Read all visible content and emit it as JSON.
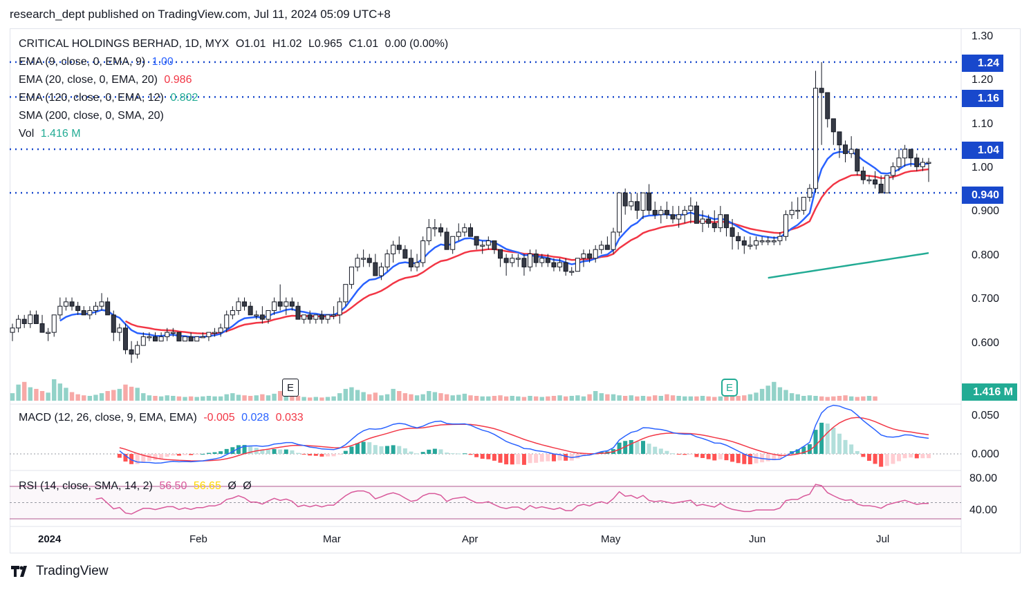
{
  "header": {
    "publisher": "research_dept published on TradingView.com, Jul 11, 2024 05:09 UTC+8"
  },
  "footer": {
    "brand": "TradingView"
  },
  "legend": {
    "symbol_line": "CRITICAL HOLDINGS BERHAD, 1D, MYX",
    "ohlc": {
      "o": "O1.01",
      "h": "H1.02",
      "l": "L0.965",
      "c": "C1.01",
      "chg": "0.00 (0.00%)"
    },
    "ema9": {
      "label": "EMA (9, close, 0, EMA, 9)",
      "value": "1.00"
    },
    "ema20": {
      "label": "EMA (20, close, 0, EMA, 20)",
      "value": "0.986"
    },
    "ema120": {
      "label": "EMA (120, close, 0, EMA, 12)",
      "value": "0.802"
    },
    "sma200": {
      "label": "SMA (200, close, 0, SMA, 20)"
    },
    "vol": {
      "label": "Vol",
      "value": "1.416 M"
    },
    "macd": {
      "label": "MACD (12, 26, close, 9, EMA, EMA)",
      "hist": "-0.005",
      "macd": "0.028",
      "signal": "0.033"
    },
    "rsi": {
      "label": "RSI (14, close, SMA, 14, 2)",
      "rsi": "56.50",
      "ma": "56.65",
      "d1": "Ø",
      "d2": "Ø"
    }
  },
  "price_axis": [
    "1.30",
    "1.20",
    "1.10",
    "1.00",
    "0.900",
    "0.800",
    "0.700",
    "0.600"
  ],
  "macd_axis": [
    "0.050",
    "0.000"
  ],
  "rsi_axis": [
    "80.00",
    "40.00"
  ],
  "levels": [
    {
      "value": 1.24,
      "label": "1.24"
    },
    {
      "value": 1.16,
      "label": "1.16"
    },
    {
      "value": 1.04,
      "label": "1.04"
    },
    {
      "value": 0.94,
      "label": "0.940"
    }
  ],
  "vol_badge": "1.416 M",
  "earnings_markers": [
    "E",
    "E"
  ],
  "months": [
    "2024",
    "Feb",
    "Mar",
    "Apr",
    "May",
    "Jun",
    "Jul"
  ],
  "colors": {
    "up": "#ffffff",
    "down": "#363a45",
    "ema9": "#2962ff",
    "ema20": "#f23645",
    "ema120": "#22ab94",
    "level": "#1848cc",
    "macd": "#2962ff",
    "signal": "#f23645",
    "rsi": "#d8589a",
    "rsi_ma": "#ffd600",
    "vol_up": "#92d2c8",
    "vol_down": "#f7a9a7"
  },
  "chart_data": {
    "type": "candlestick",
    "ohlc": [
      [
        0.62,
        0.64,
        0.6,
        0.63
      ],
      [
        0.63,
        0.66,
        0.62,
        0.65
      ],
      [
        0.65,
        0.66,
        0.63,
        0.64
      ],
      [
        0.64,
        0.67,
        0.63,
        0.66
      ],
      [
        0.66,
        0.67,
        0.64,
        0.64
      ],
      [
        0.64,
        0.66,
        0.62,
        0.62
      ],
      [
        0.62,
        0.63,
        0.6,
        0.62
      ],
      [
        0.62,
        0.66,
        0.61,
        0.66
      ],
      [
        0.66,
        0.7,
        0.65,
        0.68
      ],
      [
        0.68,
        0.7,
        0.67,
        0.69
      ],
      [
        0.69,
        0.7,
        0.67,
        0.68
      ],
      [
        0.68,
        0.69,
        0.66,
        0.67
      ],
      [
        0.67,
        0.68,
        0.66,
        0.66
      ],
      [
        0.66,
        0.68,
        0.65,
        0.67
      ],
      [
        0.67,
        0.69,
        0.66,
        0.68
      ],
      [
        0.68,
        0.71,
        0.67,
        0.69
      ],
      [
        0.69,
        0.7,
        0.66,
        0.66
      ],
      [
        0.66,
        0.67,
        0.6,
        0.62
      ],
      [
        0.62,
        0.64,
        0.6,
        0.63
      ],
      [
        0.63,
        0.64,
        0.57,
        0.58
      ],
      [
        0.58,
        0.6,
        0.55,
        0.57
      ],
      [
        0.57,
        0.6,
        0.56,
        0.59
      ],
      [
        0.59,
        0.62,
        0.59,
        0.61
      ],
      [
        0.61,
        0.62,
        0.6,
        0.61
      ],
      [
        0.61,
        0.62,
        0.6,
        0.6
      ],
      [
        0.6,
        0.62,
        0.6,
        0.61
      ],
      [
        0.61,
        0.63,
        0.6,
        0.62
      ],
      [
        0.62,
        0.63,
        0.61,
        0.62
      ],
      [
        0.62,
        0.62,
        0.6,
        0.6
      ],
      [
        0.6,
        0.61,
        0.6,
        0.61
      ],
      [
        0.61,
        0.62,
        0.6,
        0.6
      ],
      [
        0.6,
        0.61,
        0.6,
        0.61
      ],
      [
        0.61,
        0.62,
        0.61,
        0.61
      ],
      [
        0.61,
        0.62,
        0.6,
        0.62
      ],
      [
        0.62,
        0.63,
        0.61,
        0.62
      ],
      [
        0.62,
        0.64,
        0.61,
        0.63
      ],
      [
        0.63,
        0.67,
        0.62,
        0.66
      ],
      [
        0.66,
        0.68,
        0.65,
        0.67
      ],
      [
        0.67,
        0.7,
        0.66,
        0.69
      ],
      [
        0.69,
        0.7,
        0.67,
        0.68
      ],
      [
        0.68,
        0.69,
        0.66,
        0.66
      ],
      [
        0.66,
        0.67,
        0.65,
        0.66
      ],
      [
        0.66,
        0.68,
        0.64,
        0.65
      ],
      [
        0.65,
        0.67,
        0.64,
        0.67
      ],
      [
        0.67,
        0.7,
        0.66,
        0.69
      ],
      [
        0.69,
        0.73,
        0.67,
        0.68
      ],
      [
        0.68,
        0.7,
        0.66,
        0.69
      ],
      [
        0.69,
        0.7,
        0.67,
        0.68
      ],
      [
        0.68,
        0.69,
        0.65,
        0.65
      ],
      [
        0.65,
        0.66,
        0.64,
        0.66
      ],
      [
        0.66,
        0.67,
        0.64,
        0.65
      ],
      [
        0.65,
        0.66,
        0.64,
        0.66
      ],
      [
        0.66,
        0.67,
        0.64,
        0.65
      ],
      [
        0.65,
        0.66,
        0.64,
        0.66
      ],
      [
        0.66,
        0.68,
        0.65,
        0.66
      ],
      [
        0.66,
        0.7,
        0.64,
        0.69
      ],
      [
        0.69,
        0.73,
        0.68,
        0.73
      ],
      [
        0.73,
        0.77,
        0.72,
        0.77
      ],
      [
        0.77,
        0.8,
        0.76,
        0.79
      ],
      [
        0.79,
        0.81,
        0.77,
        0.79
      ],
      [
        0.79,
        0.8,
        0.77,
        0.78
      ],
      [
        0.78,
        0.8,
        0.75,
        0.75
      ],
      [
        0.75,
        0.78,
        0.74,
        0.77
      ],
      [
        0.77,
        0.81,
        0.76,
        0.8
      ],
      [
        0.8,
        0.83,
        0.78,
        0.82
      ],
      [
        0.82,
        0.84,
        0.8,
        0.81
      ],
      [
        0.81,
        0.82,
        0.79,
        0.79
      ],
      [
        0.79,
        0.81,
        0.76,
        0.77
      ],
      [
        0.77,
        0.8,
        0.76,
        0.78
      ],
      [
        0.78,
        0.84,
        0.77,
        0.83
      ],
      [
        0.83,
        0.88,
        0.82,
        0.86
      ],
      [
        0.86,
        0.88,
        0.84,
        0.86
      ],
      [
        0.86,
        0.87,
        0.84,
        0.85
      ],
      [
        0.85,
        0.86,
        0.81,
        0.81
      ],
      [
        0.81,
        0.84,
        0.8,
        0.84
      ],
      [
        0.84,
        0.87,
        0.83,
        0.85
      ],
      [
        0.85,
        0.87,
        0.84,
        0.86
      ],
      [
        0.86,
        0.87,
        0.84,
        0.84
      ],
      [
        0.84,
        0.84,
        0.81,
        0.82
      ],
      [
        0.82,
        0.83,
        0.8,
        0.82
      ],
      [
        0.82,
        0.84,
        0.81,
        0.83
      ],
      [
        0.83,
        0.83,
        0.8,
        0.81
      ],
      [
        0.81,
        0.81,
        0.77,
        0.79
      ],
      [
        0.79,
        0.8,
        0.75,
        0.78
      ],
      [
        0.78,
        0.8,
        0.77,
        0.79
      ],
      [
        0.79,
        0.8,
        0.77,
        0.79
      ],
      [
        0.79,
        0.8,
        0.75,
        0.77
      ],
      [
        0.77,
        0.81,
        0.76,
        0.8
      ],
      [
        0.8,
        0.81,
        0.77,
        0.78
      ],
      [
        0.78,
        0.8,
        0.77,
        0.79
      ],
      [
        0.79,
        0.8,
        0.77,
        0.78
      ],
      [
        0.78,
        0.79,
        0.76,
        0.77
      ],
      [
        0.77,
        0.79,
        0.76,
        0.78
      ],
      [
        0.78,
        0.79,
        0.75,
        0.76
      ],
      [
        0.76,
        0.77,
        0.75,
        0.76
      ],
      [
        0.76,
        0.79,
        0.76,
        0.79
      ],
      [
        0.79,
        0.81,
        0.77,
        0.8
      ],
      [
        0.8,
        0.81,
        0.78,
        0.79
      ],
      [
        0.79,
        0.82,
        0.78,
        0.81
      ],
      [
        0.81,
        0.83,
        0.8,
        0.82
      ],
      [
        0.82,
        0.84,
        0.81,
        0.81
      ],
      [
        0.81,
        0.86,
        0.8,
        0.85
      ],
      [
        0.85,
        0.94,
        0.84,
        0.94
      ],
      [
        0.94,
        0.95,
        0.89,
        0.91
      ],
      [
        0.91,
        0.94,
        0.9,
        0.92
      ],
      [
        0.92,
        0.94,
        0.88,
        0.9
      ],
      [
        0.9,
        0.94,
        0.88,
        0.94
      ],
      [
        0.94,
        0.96,
        0.89,
        0.9
      ],
      [
        0.9,
        0.92,
        0.88,
        0.89
      ],
      [
        0.89,
        0.91,
        0.87,
        0.9
      ],
      [
        0.9,
        0.92,
        0.88,
        0.89
      ],
      [
        0.89,
        0.91,
        0.87,
        0.88
      ],
      [
        0.88,
        0.91,
        0.86,
        0.89
      ],
      [
        0.89,
        0.91,
        0.87,
        0.9
      ],
      [
        0.9,
        0.93,
        0.87,
        0.91
      ],
      [
        0.91,
        0.92,
        0.87,
        0.87
      ],
      [
        0.87,
        0.9,
        0.85,
        0.88
      ],
      [
        0.88,
        0.89,
        0.86,
        0.87
      ],
      [
        0.87,
        0.9,
        0.85,
        0.86
      ],
      [
        0.86,
        0.91,
        0.85,
        0.89
      ],
      [
        0.89,
        0.89,
        0.84,
        0.86
      ],
      [
        0.86,
        0.88,
        0.81,
        0.84
      ],
      [
        0.84,
        0.85,
        0.81,
        0.83
      ],
      [
        0.83,
        0.84,
        0.8,
        0.82
      ],
      [
        0.82,
        0.84,
        0.81,
        0.82
      ],
      [
        0.82,
        0.84,
        0.81,
        0.83
      ],
      [
        0.83,
        0.84,
        0.82,
        0.83
      ],
      [
        0.83,
        0.84,
        0.82,
        0.83
      ],
      [
        0.83,
        0.84,
        0.82,
        0.83
      ],
      [
        0.83,
        0.85,
        0.82,
        0.84
      ],
      [
        0.84,
        0.9,
        0.83,
        0.89
      ],
      [
        0.89,
        0.92,
        0.88,
        0.9
      ],
      [
        0.9,
        0.93,
        0.88,
        0.9
      ],
      [
        0.9,
        0.93,
        0.89,
        0.93
      ],
      [
        0.93,
        0.96,
        0.92,
        0.95
      ],
      [
        0.95,
        1.22,
        0.94,
        1.18
      ],
      [
        1.18,
        1.24,
        1.05,
        1.17
      ],
      [
        1.17,
        1.17,
        1.09,
        1.11
      ],
      [
        1.11,
        1.11,
        1.05,
        1.08
      ],
      [
        1.08,
        1.08,
        1.02,
        1.05
      ],
      [
        1.05,
        1.06,
        1.01,
        1.03
      ],
      [
        1.03,
        1.07,
        1.02,
        1.04
      ],
      [
        1.04,
        1.04,
        0.98,
        0.99
      ],
      [
        0.99,
        1.0,
        0.96,
        0.97
      ],
      [
        0.97,
        0.98,
        0.96,
        0.97
      ],
      [
        0.97,
        0.99,
        0.95,
        0.96
      ],
      [
        0.96,
        0.98,
        0.94,
        0.94
      ],
      [
        0.94,
        0.98,
        0.94,
        0.98
      ],
      [
        0.98,
        1.01,
        0.97,
        1.0
      ],
      [
        1.0,
        1.04,
        0.99,
        1.02
      ],
      [
        1.02,
        1.05,
        1.0,
        1.04
      ],
      [
        1.04,
        1.04,
        1.0,
        1.02
      ],
      [
        1.02,
        1.03,
        0.99,
        1.0
      ],
      [
        1.0,
        1.02,
        0.99,
        1.01
      ],
      [
        1.01,
        1.02,
        0.965,
        1.01
      ]
    ],
    "volume_relative": [
      14,
      30,
      35,
      25,
      22,
      18,
      15,
      40,
      32,
      24,
      16,
      12,
      10,
      9,
      11,
      14,
      18,
      20,
      22,
      30,
      26,
      24,
      14,
      10,
      9,
      8,
      10,
      9,
      8,
      7,
      8,
      7,
      8,
      9,
      8,
      8,
      12,
      14,
      11,
      10,
      9,
      10,
      12,
      10,
      13,
      18,
      14,
      11,
      9,
      7,
      6,
      7,
      6,
      7,
      8,
      14,
      22,
      25,
      20,
      16,
      12,
      15,
      10,
      12,
      22,
      18,
      14,
      12,
      10,
      12,
      18,
      16,
      14,
      12,
      10,
      11,
      13,
      10,
      9,
      8,
      8,
      9,
      10,
      8,
      9,
      8,
      7,
      9,
      8,
      7,
      8,
      9,
      10,
      8,
      9,
      10,
      8,
      12,
      18,
      14,
      12,
      12,
      10,
      9,
      10,
      8,
      9,
      8,
      10,
      9,
      12,
      10,
      9,
      8,
      8,
      8,
      9,
      8,
      7,
      8,
      9,
      8,
      9,
      10,
      12,
      15,
      22,
      28,
      35,
      25,
      20,
      14,
      12,
      9,
      10,
      9,
      8,
      7,
      8,
      9,
      10,
      8,
      7,
      8,
      9,
      8
    ],
    "ylim": [
      0.55,
      1.3
    ],
    "levels": [
      1.24,
      1.16,
      1.04,
      0.94
    ]
  }
}
